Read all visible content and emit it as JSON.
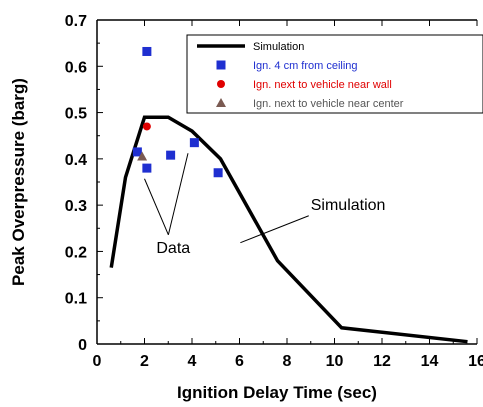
{
  "chart_data": {
    "type": "line",
    "xlabel": "Ignition Delay Time (sec)",
    "ylabel": "Peak Overpressure (barg)",
    "xlim": [
      0,
      16
    ],
    "ylim": [
      0,
      0.7
    ],
    "xticks": [
      "0",
      "2",
      "4",
      "6",
      "8",
      "10",
      "12",
      "14",
      "16"
    ],
    "yticks": [
      "0",
      "0.1",
      "0.2",
      "0.3",
      "0.4",
      "0.5",
      "0.6",
      "0.7"
    ],
    "grid": false,
    "legend_placement": "top-right",
    "series": [
      {
        "name": "Simulation",
        "kind": "line",
        "color": "#000000",
        "x": [
          0.6,
          1.2,
          2.0,
          3.0,
          4.0,
          5.2,
          7.6,
          10.3,
          15.6
        ],
        "y": [
          0.165,
          0.36,
          0.49,
          0.49,
          0.46,
          0.4,
          0.18,
          0.035,
          0.005
        ]
      },
      {
        "name": "Ign. 4 cm from ceiling",
        "kind": "scatter",
        "marker": "square",
        "color": "#1f2fd0",
        "text_color": "#1f2fd0",
        "x": [
          2.1,
          1.7,
          2.1,
          3.1,
          4.1,
          5.1
        ],
        "y": [
          0.632,
          0.415,
          0.38,
          0.408,
          0.435,
          0.37
        ]
      },
      {
        "name": "Ign. next to vehicle near wall",
        "kind": "scatter",
        "marker": "circle",
        "color": "#e00000",
        "text_color": "#e00000",
        "x": [
          2.1
        ],
        "y": [
          0.47
        ]
      },
      {
        "name": "Ign. next to vehicle near center",
        "kind": "scatter",
        "marker": "triangle",
        "color": "#7a5a52",
        "text_color": "#555555",
        "x": [
          1.9
        ],
        "y": [
          0.405
        ]
      }
    ],
    "annotations": [
      {
        "text": "Simulation",
        "x": 9.0,
        "y": 0.29,
        "arrow_to": [
          7.3,
          0.18
        ]
      },
      {
        "text": "Data",
        "x": 2.5,
        "y": 0.21,
        "arrows_to": [
          [
            2.0,
            0.37
          ],
          [
            4.0,
            0.425
          ]
        ]
      }
    ]
  }
}
